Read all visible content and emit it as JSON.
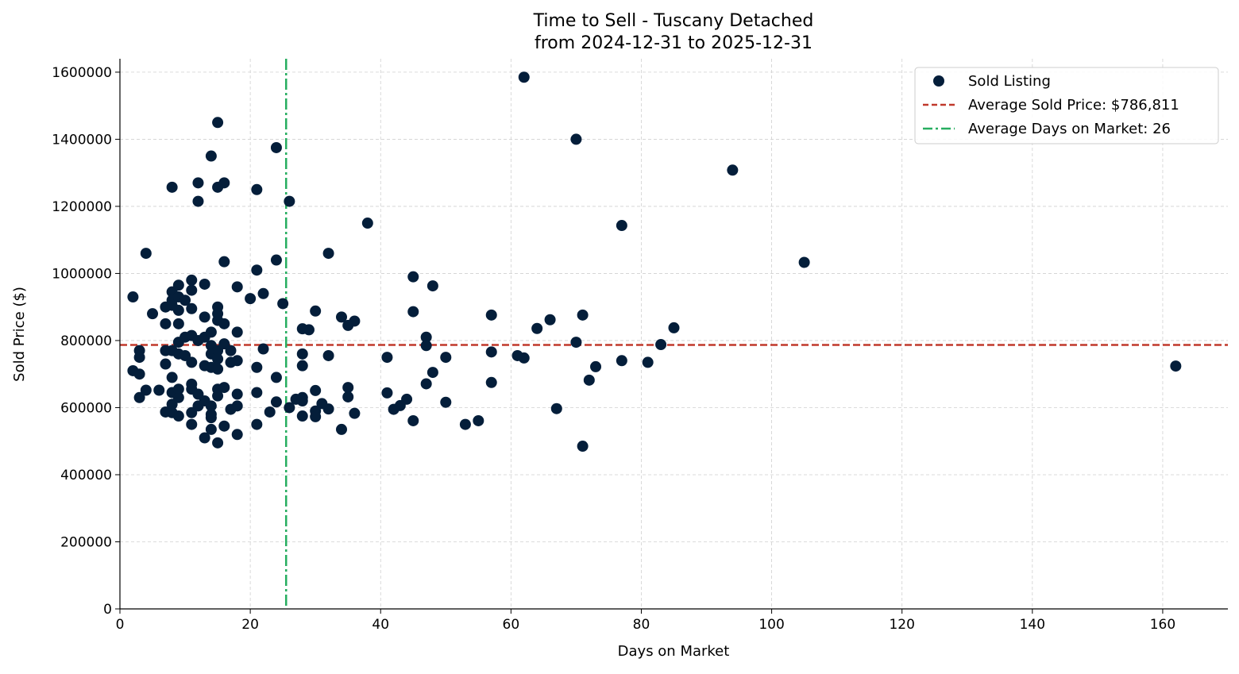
{
  "chart_data": {
    "type": "scatter",
    "title": "Time to Sell - Tuscany Detached",
    "subtitle": "from 2024-12-31 to 2025-12-31",
    "xlabel": "Days on Market",
    "ylabel": "Sold Price ($)",
    "xlim": [
      0,
      170
    ],
    "ylim": [
      0,
      1640000
    ],
    "xticks": [
      0,
      20,
      40,
      60,
      80,
      100,
      120,
      140,
      160
    ],
    "yticks": [
      0,
      200000,
      400000,
      600000,
      800000,
      1000000,
      1200000,
      1400000,
      1600000
    ],
    "grid": true,
    "legend_placement": "top-right",
    "colors": {
      "points": "#041e3a",
      "avg_price_line": "#c0392b",
      "avg_days_line": "#27ae60"
    },
    "legend": [
      {
        "label": "Sold Listing",
        "kind": "point"
      },
      {
        "label": "Average Sold Price: $786,811",
        "kind": "dashed"
      },
      {
        "label": "Average Days on Market: 26",
        "kind": "dashdot"
      }
    ],
    "avg_price": 786811,
    "avg_days": 25.5,
    "series": [
      {
        "name": "Sold Listing",
        "points": [
          [
            62,
            1585000
          ],
          [
            70,
            1400000
          ],
          [
            94,
            1308000
          ],
          [
            77,
            1143000
          ],
          [
            105,
            1033000
          ],
          [
            162,
            724000
          ],
          [
            85,
            838000
          ],
          [
            83,
            788000
          ],
          [
            81,
            735000
          ],
          [
            77,
            740000
          ],
          [
            73,
            722000
          ],
          [
            72,
            682000
          ],
          [
            71,
            485000
          ],
          [
            71,
            876000
          ],
          [
            70,
            795000
          ],
          [
            67,
            597000
          ],
          [
            66,
            862000
          ],
          [
            64,
            836000
          ],
          [
            62,
            748000
          ],
          [
            61,
            755000
          ],
          [
            57,
            876000
          ],
          [
            57,
            766000
          ],
          [
            57,
            675000
          ],
          [
            55,
            561000
          ],
          [
            53,
            550000
          ],
          [
            50,
            750000
          ],
          [
            50,
            616000
          ],
          [
            48,
            963000
          ],
          [
            48,
            705000
          ],
          [
            47,
            810000
          ],
          [
            47,
            785000
          ],
          [
            47,
            671000
          ],
          [
            45,
            990000
          ],
          [
            45,
            886000
          ],
          [
            45,
            561000
          ],
          [
            44,
            625000
          ],
          [
            43,
            606000
          ],
          [
            42,
            595000
          ],
          [
            41,
            750000
          ],
          [
            41,
            644000
          ],
          [
            38,
            1150000
          ],
          [
            36,
            858000
          ],
          [
            36,
            583000
          ],
          [
            35,
            845000
          ],
          [
            35,
            660000
          ],
          [
            35,
            632000
          ],
          [
            34,
            870000
          ],
          [
            34,
            535000
          ],
          [
            32,
            1060000
          ],
          [
            32,
            755000
          ],
          [
            32,
            596000
          ],
          [
            31,
            612000
          ],
          [
            30,
            888000
          ],
          [
            30,
            651000
          ],
          [
            30,
            590000
          ],
          [
            30,
            573000
          ],
          [
            29,
            832000
          ],
          [
            28,
            835000
          ],
          [
            28,
            760000
          ],
          [
            28,
            725000
          ],
          [
            28,
            630000
          ],
          [
            28,
            620000
          ],
          [
            28,
            575000
          ],
          [
            27,
            625000
          ],
          [
            26,
            1215000
          ],
          [
            26,
            600000
          ],
          [
            25,
            910000
          ],
          [
            24,
            1375000
          ],
          [
            24,
            1040000
          ],
          [
            24,
            690000
          ],
          [
            24,
            617000
          ],
          [
            23,
            587000
          ],
          [
            22,
            940000
          ],
          [
            22,
            775000
          ],
          [
            21,
            1250000
          ],
          [
            21,
            1010000
          ],
          [
            21,
            720000
          ],
          [
            21,
            645000
          ],
          [
            21,
            550000
          ],
          [
            20,
            925000
          ],
          [
            2,
            930000
          ],
          [
            2,
            710000
          ],
          [
            3,
            770000
          ],
          [
            3,
            750000
          ],
          [
            3,
            700000
          ],
          [
            3,
            630000
          ],
          [
            4,
            1060000
          ],
          [
            4,
            652000
          ],
          [
            5,
            880000
          ],
          [
            6,
            652000
          ],
          [
            7,
            900000
          ],
          [
            7,
            850000
          ],
          [
            7,
            770000
          ],
          [
            7,
            730000
          ],
          [
            7,
            587000
          ],
          [
            8,
            1257000
          ],
          [
            8,
            945000
          ],
          [
            8,
            920000
          ],
          [
            8,
            905000
          ],
          [
            8,
            770000
          ],
          [
            8,
            690000
          ],
          [
            8,
            645000
          ],
          [
            8,
            610000
          ],
          [
            8,
            585000
          ],
          [
            9,
            965000
          ],
          [
            9,
            930000
          ],
          [
            9,
            890000
          ],
          [
            9,
            850000
          ],
          [
            9,
            795000
          ],
          [
            9,
            760000
          ],
          [
            9,
            655000
          ],
          [
            9,
            630000
          ],
          [
            9,
            575000
          ],
          [
            10,
            920000
          ],
          [
            10,
            810000
          ],
          [
            10,
            755000
          ],
          [
            11,
            980000
          ],
          [
            11,
            950000
          ],
          [
            11,
            895000
          ],
          [
            11,
            815000
          ],
          [
            11,
            735000
          ],
          [
            11,
            670000
          ],
          [
            11,
            655000
          ],
          [
            11,
            585000
          ],
          [
            11,
            550000
          ],
          [
            12,
            1270000
          ],
          [
            12,
            1215000
          ],
          [
            12,
            800000
          ],
          [
            12,
            640000
          ],
          [
            12,
            605000
          ],
          [
            13,
            968000
          ],
          [
            13,
            870000
          ],
          [
            13,
            810000
          ],
          [
            13,
            725000
          ],
          [
            13,
            620000
          ],
          [
            13,
            510000
          ],
          [
            14,
            1350000
          ],
          [
            14,
            825000
          ],
          [
            14,
            785000
          ],
          [
            14,
            760000
          ],
          [
            14,
            720000
          ],
          [
            14,
            605000
          ],
          [
            14,
            580000
          ],
          [
            14,
            570000
          ],
          [
            14,
            535000
          ],
          [
            15,
            1450000
          ],
          [
            15,
            1257000
          ],
          [
            15,
            900000
          ],
          [
            15,
            880000
          ],
          [
            15,
            860000
          ],
          [
            15,
            770000
          ],
          [
            15,
            745000
          ],
          [
            15,
            715000
          ],
          [
            15,
            655000
          ],
          [
            15,
            635000
          ],
          [
            15,
            495000
          ],
          [
            16,
            1270000
          ],
          [
            16,
            1035000
          ],
          [
            16,
            850000
          ],
          [
            16,
            790000
          ],
          [
            16,
            660000
          ],
          [
            16,
            545000
          ],
          [
            17,
            770000
          ],
          [
            17,
            735000
          ],
          [
            17,
            595000
          ],
          [
            18,
            960000
          ],
          [
            18,
            825000
          ],
          [
            18,
            740000
          ],
          [
            18,
            640000
          ],
          [
            18,
            605000
          ],
          [
            18,
            520000
          ]
        ]
      }
    ]
  }
}
